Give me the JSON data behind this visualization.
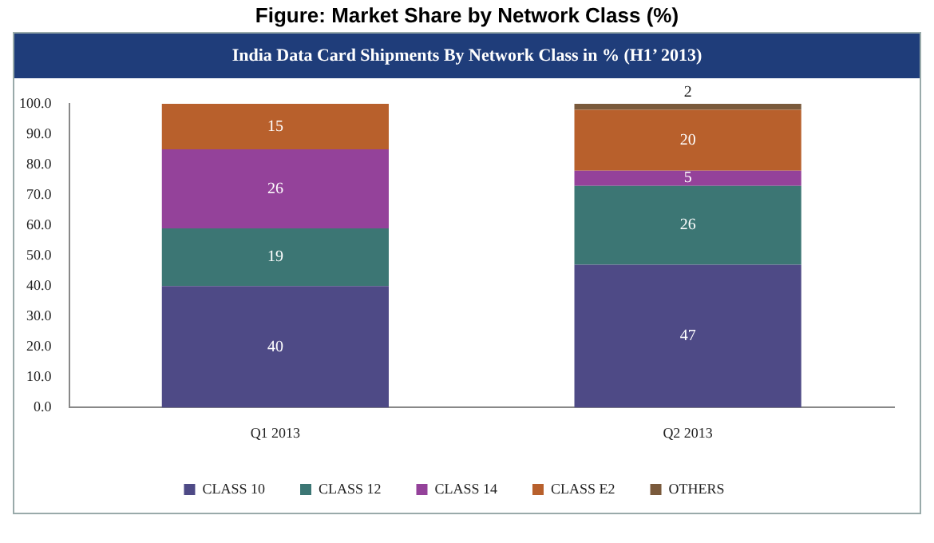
{
  "chart_data": {
    "type": "bar",
    "title": "Figure: Market Share by Network Class (%)",
    "subtitle": "India Data Card Shipments By Network Class in % (H1’ 2013)",
    "categories": [
      "Q1 2013",
      "Q2 2013"
    ],
    "stacked": true,
    "series": [
      {
        "name": "CLASS 10",
        "color": "#4e4a86",
        "values": [
          40,
          47
        ]
      },
      {
        "name": "CLASS 12",
        "color": "#3c7674",
        "values": [
          19,
          26
        ]
      },
      {
        "name": "CLASS 14",
        "color": "#94429a",
        "values": [
          26,
          5
        ]
      },
      {
        "name": "CLASS E2",
        "color": "#b8602c",
        "values": [
          15,
          20
        ]
      },
      {
        "name": "OTHERS",
        "color": "#7a5a3c",
        "values": [
          null,
          2
        ]
      }
    ],
    "ylim": [
      0,
      100
    ],
    "yticks": [
      {
        "value": 0,
        "label": "0.0"
      },
      {
        "value": 10,
        "label": "10.0"
      },
      {
        "value": 20,
        "label": "20.0"
      },
      {
        "value": 30,
        "label": "30.0"
      },
      {
        "value": 40,
        "label": "40.0"
      },
      {
        "value": 50,
        "label": "50.0"
      },
      {
        "value": 60,
        "label": "60.0"
      },
      {
        "value": 70,
        "label": "70.0"
      },
      {
        "value": 80,
        "label": "80.0"
      },
      {
        "value": 90,
        "label": "90.0"
      },
      {
        "value": 100,
        "label": "100.0"
      }
    ],
    "grid": false,
    "legend": "bottom",
    "data_labels": true
  }
}
